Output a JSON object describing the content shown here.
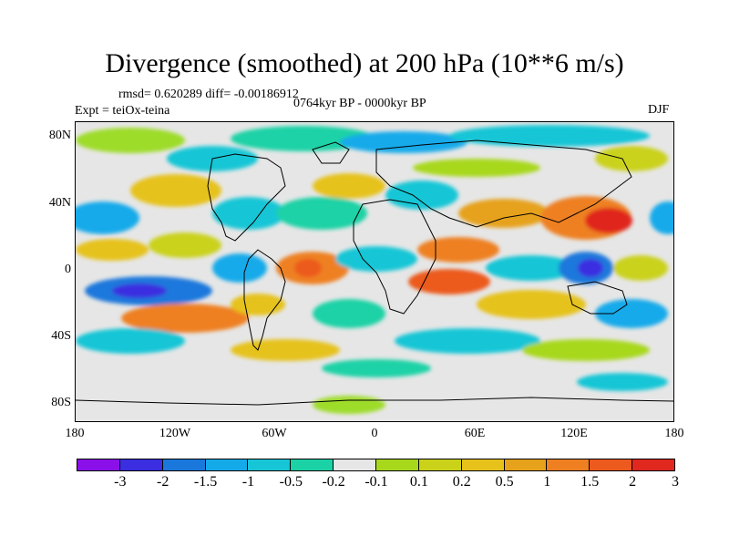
{
  "title": "Divergence (smoothed) at 200 hPa (10**6 m/s)",
  "stats": "rmsd= 0.620289 diff= -0.00186912",
  "period": "0764kyr BP - 0000kyr BP",
  "experiment": "Expt = teiOx-teina",
  "season": "DJF",
  "map": {
    "lat_labels": [
      "80N",
      "40N",
      "0",
      "40S",
      "80S"
    ],
    "lon_labels": [
      "180",
      "120W",
      "60W",
      "0",
      "60E",
      "120E",
      "180"
    ]
  },
  "colorbar": {
    "colors": [
      "#8a0fe8",
      "#3a2ee0",
      "#1a78dc",
      "#14aaea",
      "#16c6d6",
      "#1bd2a6",
      "#e6e6e6",
      "#a8d81c",
      "#cad21a",
      "#e6c21a",
      "#e6a21a",
      "#ee8022",
      "#ec5a1e",
      "#e0281e"
    ],
    "labels": [
      "-3",
      "-2",
      "-1.5",
      "-1",
      "-0.5",
      "-0.2",
      "-0.1",
      "0.1",
      "0.2",
      "0.5",
      "1",
      "1.5",
      "2",
      "3"
    ]
  }
}
